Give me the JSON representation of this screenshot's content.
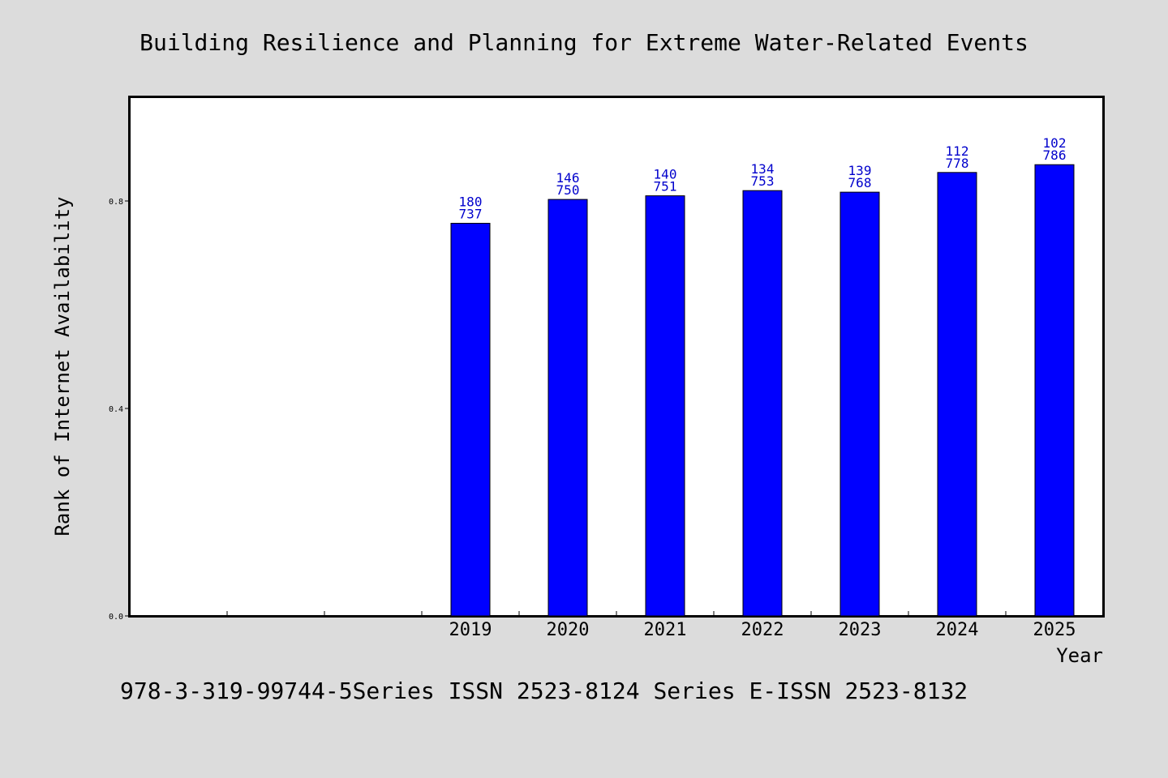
{
  "chart_data": {
    "type": "bar",
    "title": "Building Resilience and Planning for Extreme Water-Related Events",
    "xlabel": "Year",
    "ylabel": "Rank of Internet Availability",
    "categories": [
      "",
      "",
      "",
      "2019",
      "2020",
      "2021",
      "2022",
      "2023",
      "2024",
      "2025"
    ],
    "values": [
      null,
      null,
      null,
      0.757,
      0.803,
      0.81,
      0.82,
      0.817,
      0.855,
      0.87
    ],
    "data_labels": [
      null,
      null,
      null,
      [
        "180",
        "737"
      ],
      [
        "146",
        "750"
      ],
      [
        "140",
        "751"
      ],
      [
        "134",
        "753"
      ],
      [
        "139",
        "768"
      ],
      [
        "112",
        "778"
      ],
      [
        "102",
        "786"
      ]
    ],
    "yticks": [
      0.0,
      0.4,
      0.8
    ],
    "ytick_labels": [
      "0.0",
      "0.4",
      "0.8"
    ],
    "ylim": [
      0,
      1.0
    ],
    "grid": false,
    "bar_color": "#0000ff",
    "label_color": "#0000cc",
    "footer": "978-3-319-99744-5Series ISSN 2523-8124 Series E-ISSN 2523-8132"
  }
}
